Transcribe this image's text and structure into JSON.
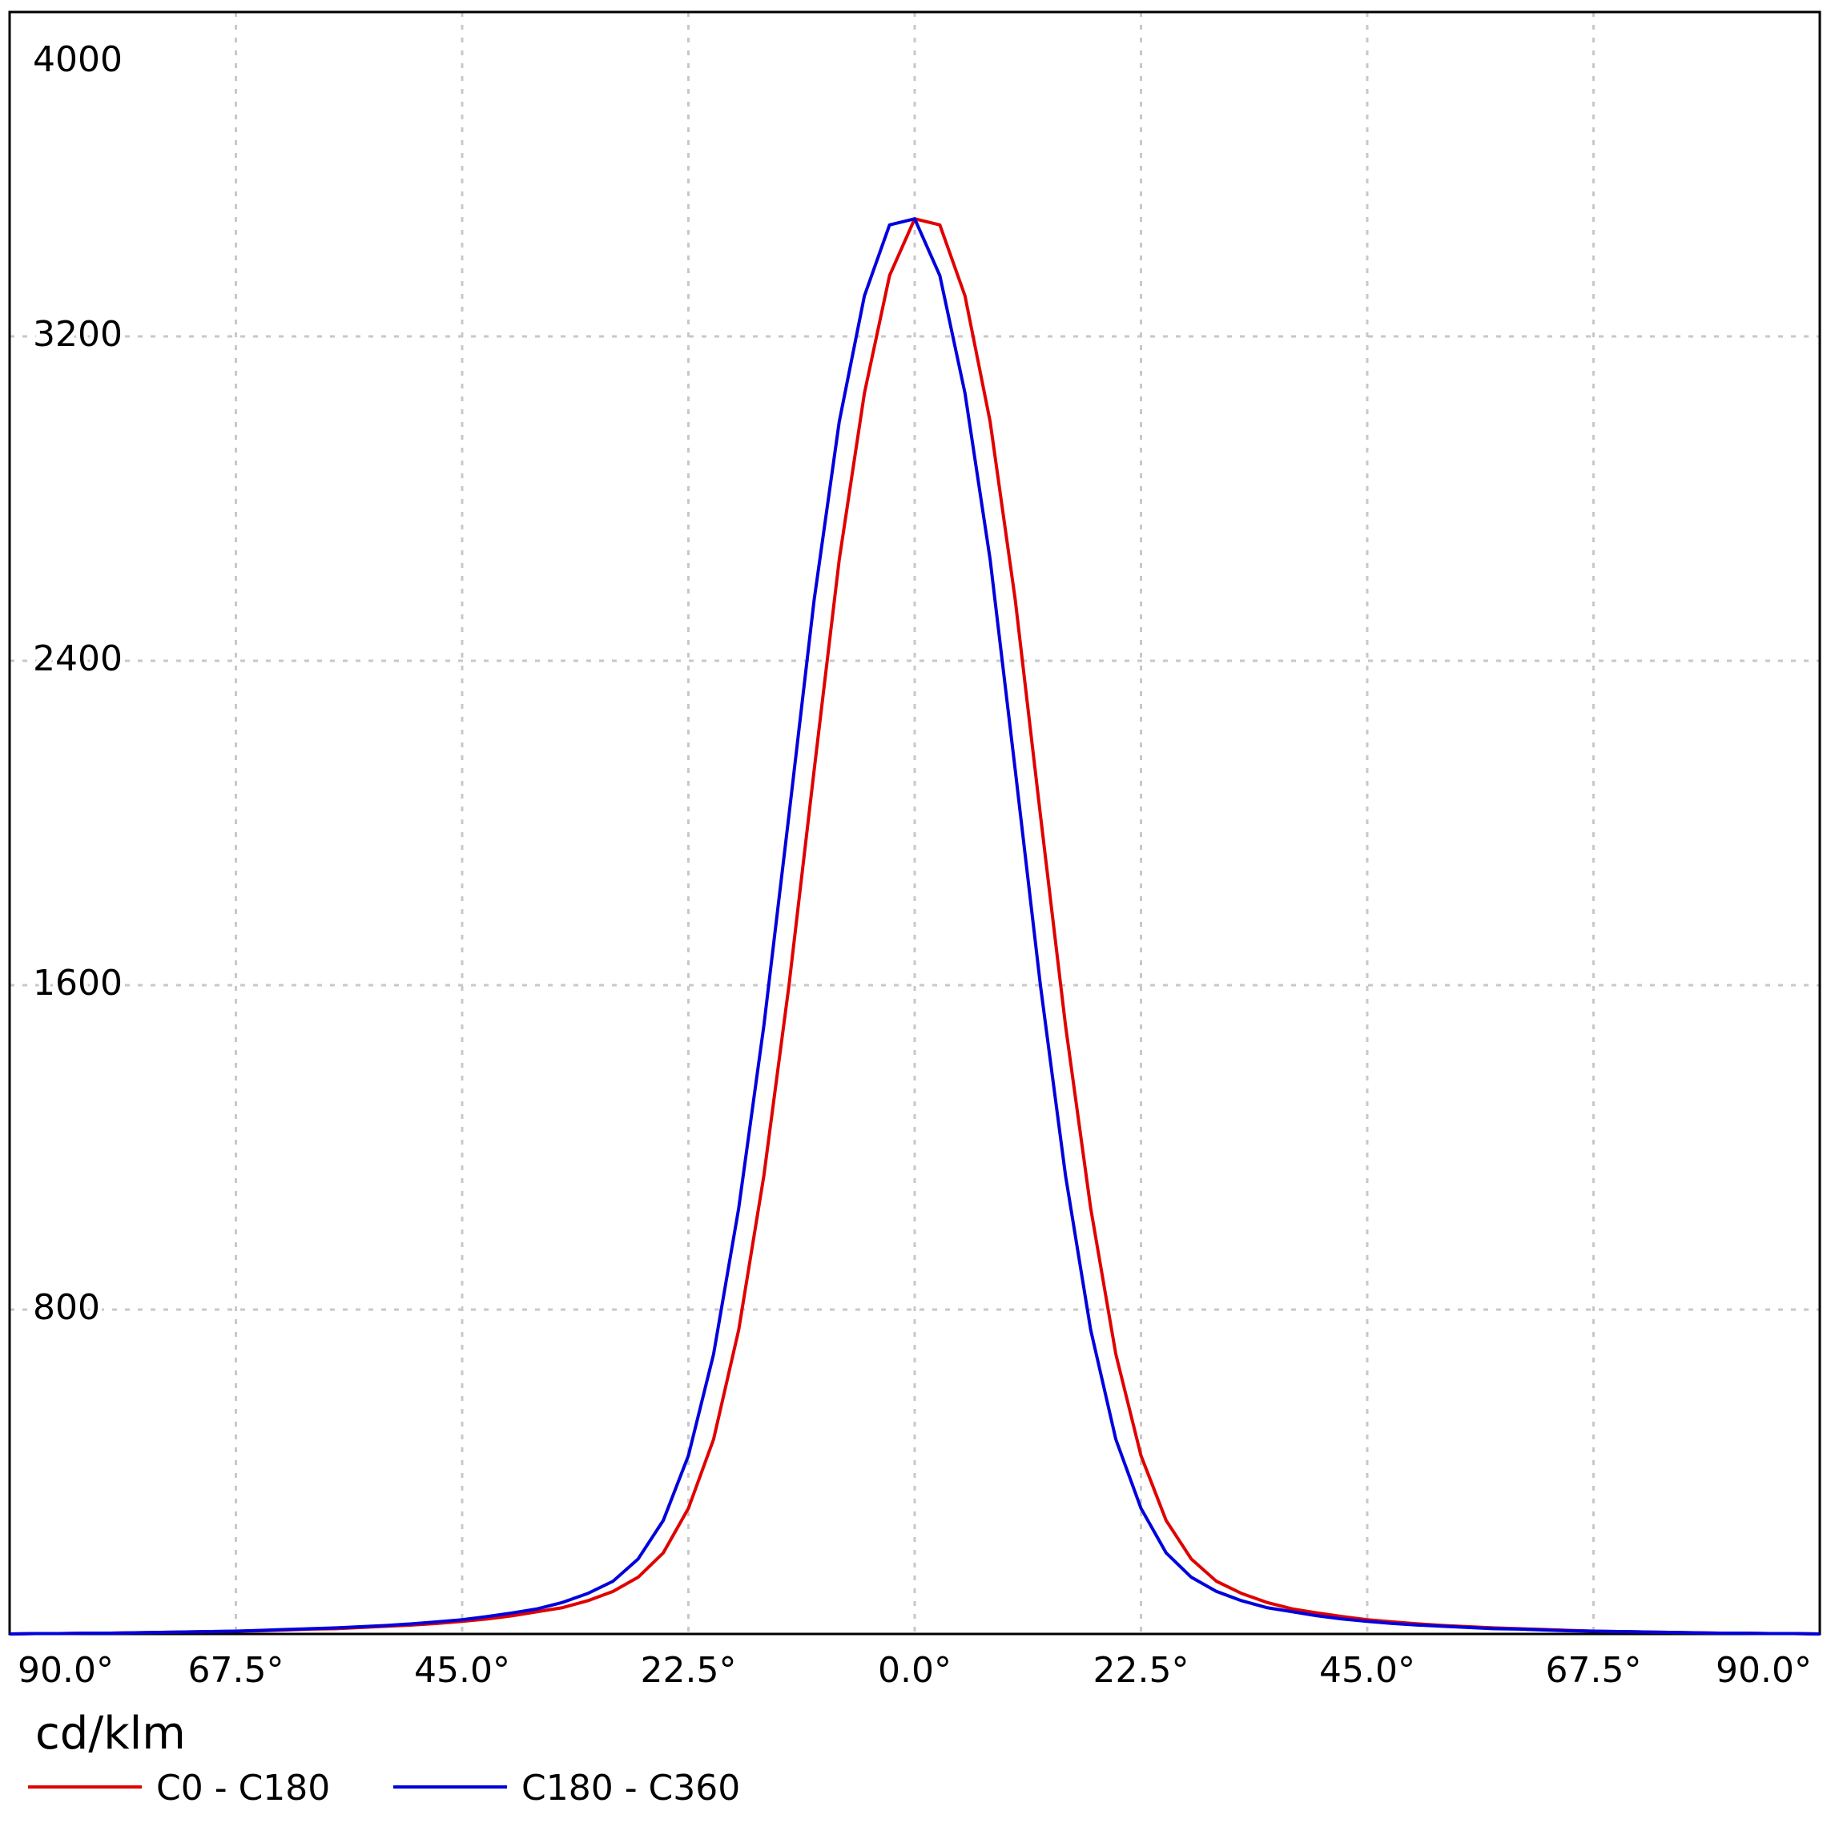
{
  "chart_data": {
    "type": "line",
    "x": [
      -90,
      -87.5,
      -85,
      -82.5,
      -80,
      -77.5,
      -75,
      -72.5,
      -70,
      -67.5,
      -65,
      -62.5,
      -60,
      -57.5,
      -55,
      -52.5,
      -50,
      -47.5,
      -45,
      -42.5,
      -40,
      -37.5,
      -35,
      -32.5,
      -30,
      -27.5,
      -25,
      -22.5,
      -20,
      -17.5,
      -15,
      -12.5,
      -10,
      -7.5,
      -5,
      -2.5,
      0,
      2.5,
      5,
      7.5,
      10,
      12.5,
      15,
      17.5,
      20,
      22.5,
      25,
      27.5,
      30,
      32.5,
      35,
      37.5,
      40,
      42.5,
      45,
      47.5,
      50,
      52.5,
      55,
      57.5,
      60,
      62.5,
      65,
      67.5,
      70,
      72.5,
      75,
      77.5,
      80,
      82.5,
      85,
      87.5,
      90
    ],
    "series": [
      {
        "name": "C0 - C180",
        "color": "#e00000",
        "values": [
          0,
          1,
          1,
          2,
          2,
          3,
          4,
          5,
          6,
          7,
          8,
          10,
          12,
          13,
          16,
          19,
          22,
          26,
          31,
          37,
          45,
          55,
          65,
          82,
          105,
          140,
          200,
          310,
          480,
          750,
          1130,
          1600,
          2130,
          2650,
          3060,
          3350,
          3490,
          3475,
          3300,
          2990,
          2550,
          2020,
          1500,
          1050,
          690,
          440,
          280,
          185,
          130,
          100,
          78,
          62,
          52,
          43,
          35,
          30,
          25,
          21,
          18,
          15,
          13,
          11,
          9,
          7,
          6,
          5,
          4,
          3,
          2,
          2,
          1,
          1,
          0
        ]
      },
      {
        "name": "C180 - C360",
        "color": "#0000dd",
        "values": [
          0,
          1,
          1,
          2,
          2,
          3,
          4,
          5,
          6,
          7,
          9,
          11,
          13,
          15,
          18,
          21,
          25,
          30,
          35,
          43,
          52,
          62,
          78,
          100,
          130,
          185,
          280,
          440,
          690,
          1050,
          1500,
          2020,
          2550,
          2990,
          3300,
          3475,
          3490,
          3350,
          3060,
          2650,
          2130,
          1600,
          1130,
          750,
          480,
          310,
          200,
          140,
          105,
          82,
          65,
          55,
          45,
          37,
          31,
          26,
          22,
          19,
          16,
          13,
          12,
          10,
          8,
          7,
          6,
          5,
          4,
          3,
          2,
          2,
          1,
          1,
          0
        ]
      }
    ],
    "xlim": [
      -90,
      90
    ],
    "xticks": [
      {
        "value": -90,
        "label": "90.0°"
      },
      {
        "value": -67.5,
        "label": "67.5°"
      },
      {
        "value": -45,
        "label": "45.0°"
      },
      {
        "value": -22.5,
        "label": "22.5°"
      },
      {
        "value": 0,
        "label": "0.0°"
      },
      {
        "value": 22.5,
        "label": "22.5°"
      },
      {
        "value": 45,
        "label": "45.0°"
      },
      {
        "value": 67.5,
        "label": "67.5°"
      },
      {
        "value": 90,
        "label": "90.0°"
      }
    ],
    "ylim": [
      0,
      4000
    ],
    "yticks": [
      800,
      1600,
      2400,
      3200,
      4000
    ],
    "y_label": "cd/klm",
    "grid": true
  }
}
